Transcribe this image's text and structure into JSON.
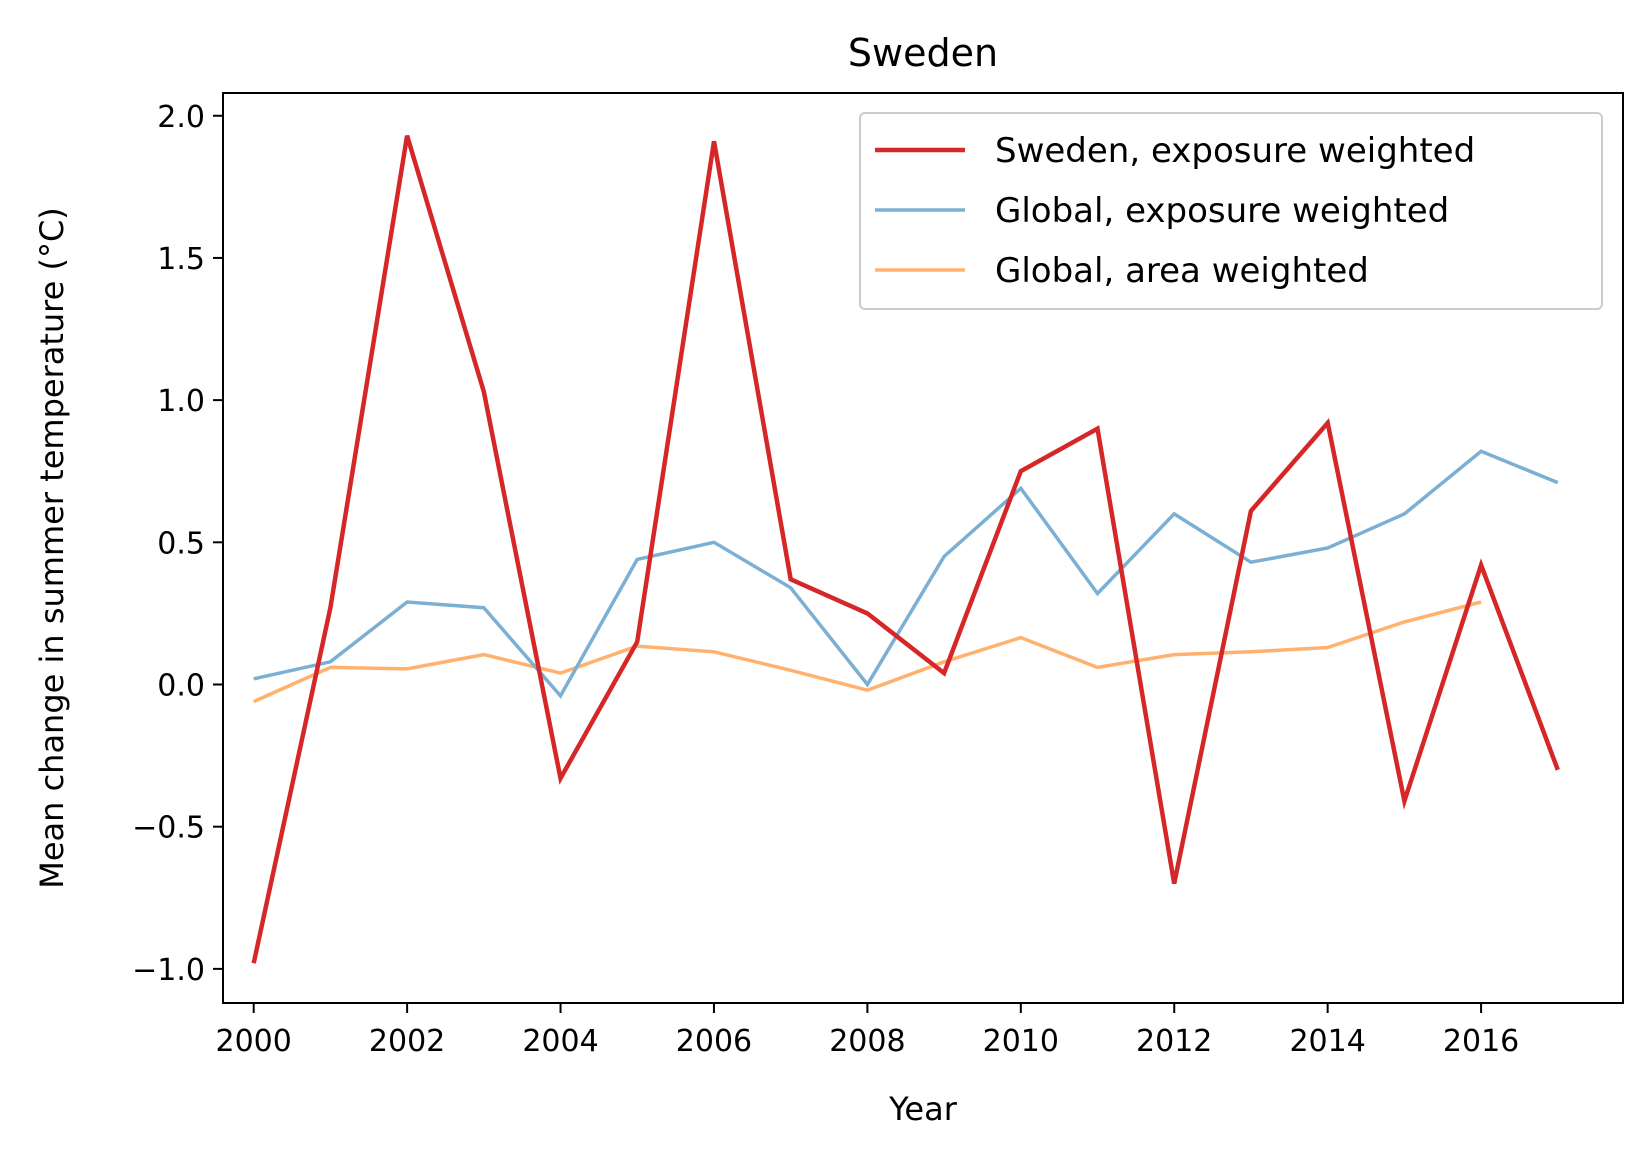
{
  "chart_data": {
    "type": "line",
    "title": "Sweden",
    "xlabel": "Year",
    "ylabel": "Mean change in summer temperature (°C)",
    "xlim": [
      1999.6,
      2017.85
    ],
    "ylim": [
      -1.12,
      2.08
    ],
    "x_ticks": [
      2000,
      2002,
      2004,
      2006,
      2008,
      2010,
      2012,
      2014,
      2016
    ],
    "y_ticks": [
      -1.0,
      -0.5,
      0.0,
      0.5,
      1.0,
      1.5,
      2.0
    ],
    "y_tick_labels": [
      "−1.0",
      "−0.5",
      "0.0",
      "0.5",
      "1.0",
      "1.5",
      "2.0"
    ],
    "grid": false,
    "legend_position": "top-right",
    "series": [
      {
        "name": "Sweden, exposure weighted",
        "color": "#d62728",
        "x": [
          2000,
          2001,
          2002,
          2003,
          2004,
          2005,
          2006,
          2007,
          2008,
          2009,
          2010,
          2011,
          2012,
          2013,
          2014,
          2015,
          2016,
          2017
        ],
        "values": [
          -0.98,
          0.27,
          1.93,
          1.03,
          -0.33,
          0.15,
          1.91,
          0.37,
          0.25,
          0.04,
          0.75,
          0.9,
          -0.7,
          0.61,
          0.92,
          -0.41,
          0.42,
          -0.3
        ]
      },
      {
        "name": "Global, exposure weighted",
        "color": "#7bafd4",
        "x": [
          2000,
          2001,
          2002,
          2003,
          2004,
          2005,
          2006,
          2007,
          2008,
          2009,
          2010,
          2011,
          2012,
          2013,
          2014,
          2015,
          2016,
          2017
        ],
        "values": [
          0.02,
          0.08,
          0.29,
          0.27,
          -0.04,
          0.44,
          0.5,
          0.34,
          0.0,
          0.45,
          0.69,
          0.32,
          0.6,
          0.43,
          0.48,
          0.6,
          0.82,
          0.71
        ]
      },
      {
        "name": "Global, area weighted",
        "color": "#ffb26e",
        "x": [
          2000,
          2001,
          2002,
          2003,
          2004,
          2005,
          2006,
          2007,
          2008,
          2009,
          2010,
          2011,
          2012,
          2013,
          2014,
          2015,
          2016
        ],
        "values": [
          -0.06,
          0.06,
          0.055,
          0.105,
          0.04,
          0.135,
          0.115,
          0.05,
          -0.02,
          0.08,
          0.165,
          0.06,
          0.105,
          0.115,
          0.13,
          0.22,
          0.29
        ]
      }
    ]
  }
}
